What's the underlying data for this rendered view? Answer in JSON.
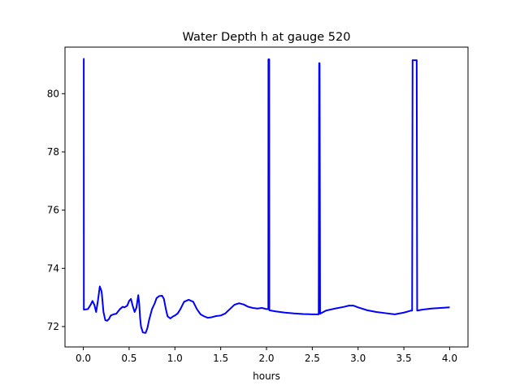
{
  "chart_data": {
    "type": "line",
    "title": "Water Depth h at gauge 520",
    "xlabel": "hours",
    "ylabel": "",
    "xlim": [
      -0.2,
      4.2
    ],
    "ylim": [
      71.3,
      81.6
    ],
    "x_ticks": [
      0.0,
      0.5,
      1.0,
      1.5,
      2.0,
      2.5,
      3.0,
      3.5,
      4.0
    ],
    "x_tick_labels": [
      "0.0",
      "0.5",
      "1.0",
      "1.5",
      "2.0",
      "2.5",
      "3.0",
      "3.5",
      "4.0"
    ],
    "y_ticks": [
      72,
      74,
      76,
      78,
      80
    ],
    "y_tick_labels": [
      "72",
      "74",
      "76",
      "78",
      "80"
    ],
    "grid": false,
    "line_color": "#0000ff",
    "series": [
      {
        "x": [
          0.0,
          0.005,
          0.006,
          0.05,
          0.08,
          0.1,
          0.12,
          0.14,
          0.16,
          0.18,
          0.2,
          0.22,
          0.24,
          0.26,
          0.28,
          0.3,
          0.33,
          0.36,
          0.4,
          0.43,
          0.45,
          0.48,
          0.5,
          0.52,
          0.54,
          0.56,
          0.58,
          0.6,
          0.61,
          0.62,
          0.63,
          0.65,
          0.68,
          0.7,
          0.72,
          0.75,
          0.78,
          0.8,
          0.83,
          0.86,
          0.88,
          0.9,
          0.92,
          0.95,
          0.98,
          1.0,
          1.03,
          1.06,
          1.1,
          1.15,
          1.2,
          1.24,
          1.28,
          1.32,
          1.36,
          1.4,
          1.45,
          1.5,
          1.55,
          1.6,
          1.65,
          1.7,
          1.75,
          1.8,
          1.85,
          1.9,
          1.95,
          2.0,
          2.02,
          2.021,
          2.03,
          2.031,
          2.1,
          2.2,
          2.3,
          2.4,
          2.5,
          2.57,
          2.575,
          2.58,
          2.585,
          2.65,
          2.75,
          2.85,
          2.9,
          2.95,
          3.0,
          3.1,
          3.2,
          3.3,
          3.4,
          3.5,
          3.58,
          3.59,
          3.595,
          3.64,
          3.645,
          3.7,
          3.8,
          3.9,
          4.0
        ],
        "y": [
          81.2,
          81.2,
          72.58,
          72.6,
          72.75,
          72.88,
          72.75,
          72.5,
          72.9,
          73.38,
          73.2,
          72.5,
          72.22,
          72.2,
          72.26,
          72.38,
          72.42,
          72.44,
          72.6,
          72.68,
          72.66,
          72.72,
          72.88,
          72.95,
          72.7,
          72.5,
          72.65,
          73.08,
          72.8,
          72.3,
          72.0,
          71.8,
          71.78,
          71.95,
          72.25,
          72.6,
          72.8,
          72.98,
          73.05,
          73.06,
          72.95,
          72.62,
          72.35,
          72.28,
          72.35,
          72.38,
          72.45,
          72.6,
          72.85,
          72.92,
          72.85,
          72.6,
          72.42,
          72.35,
          72.3,
          72.32,
          72.36,
          72.38,
          72.45,
          72.6,
          72.75,
          72.8,
          72.76,
          72.68,
          72.64,
          72.62,
          72.64,
          72.6,
          72.6,
          81.18,
          81.18,
          72.56,
          72.52,
          72.48,
          72.45,
          72.43,
          72.42,
          72.42,
          81.05,
          81.05,
          72.44,
          72.55,
          72.62,
          72.68,
          72.72,
          72.72,
          72.66,
          72.56,
          72.5,
          72.46,
          72.42,
          72.48,
          72.55,
          72.55,
          81.15,
          81.15,
          72.55,
          72.58,
          72.62,
          72.64,
          72.66
        ]
      }
    ]
  }
}
